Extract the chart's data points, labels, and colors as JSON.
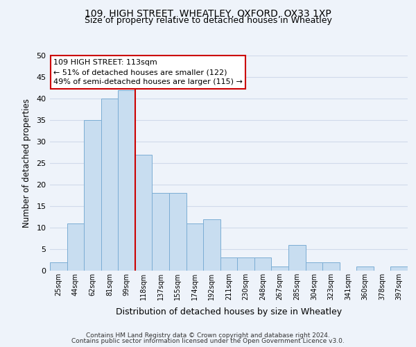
{
  "title_line1": "109, HIGH STREET, WHEATLEY, OXFORD, OX33 1XP",
  "title_line2": "Size of property relative to detached houses in Wheatley",
  "xlabel": "Distribution of detached houses by size in Wheatley",
  "ylabel": "Number of detached properties",
  "bar_color": "#c8ddf0",
  "bar_edge_color": "#7badd4",
  "bin_labels": [
    "25sqm",
    "44sqm",
    "62sqm",
    "81sqm",
    "99sqm",
    "118sqm",
    "137sqm",
    "155sqm",
    "174sqm",
    "192sqm",
    "211sqm",
    "230sqm",
    "248sqm",
    "267sqm",
    "285sqm",
    "304sqm",
    "323sqm",
    "341sqm",
    "360sqm",
    "378sqm",
    "397sqm"
  ],
  "bar_heights": [
    2,
    11,
    35,
    40,
    42,
    27,
    18,
    18,
    11,
    12,
    3,
    3,
    3,
    1,
    6,
    2,
    2,
    0,
    1,
    0,
    1
  ],
  "ylim": [
    0,
    50
  ],
  "yticks": [
    0,
    5,
    10,
    15,
    20,
    25,
    30,
    35,
    40,
    45,
    50
  ],
  "vline_x": 5,
  "vline_color": "#cc0000",
  "annotation_line1": "109 HIGH STREET: 113sqm",
  "annotation_line2": "← 51% of detached houses are smaller (122)",
  "annotation_line3": "49% of semi-detached houses are larger (115) →",
  "annotation_box_color": "white",
  "annotation_box_edge": "#cc0000",
  "footer_line1": "Contains HM Land Registry data © Crown copyright and database right 2024.",
  "footer_line2": "Contains public sector information licensed under the Open Government Licence v3.0.",
  "background_color": "#eef3fa",
  "grid_color": "#d0daea"
}
